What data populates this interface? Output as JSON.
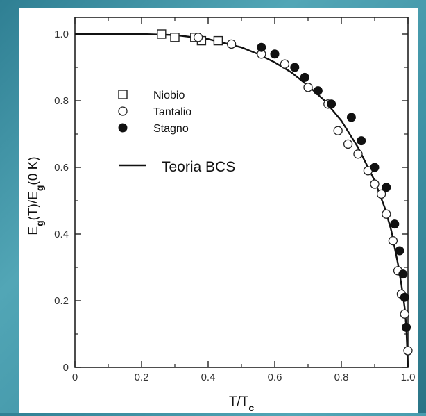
{
  "chart_data": {
    "type": "scatter",
    "xlabel": "T/T_c",
    "ylabel": "E_g(T)/E_g(0 K)",
    "xlim": [
      0,
      1.0
    ],
    "ylim": [
      0,
      1.05
    ],
    "xticks": [
      0,
      0.2,
      0.4,
      0.6,
      0.8,
      1.0
    ],
    "xtick_labels": [
      "0",
      "0.2",
      "0.4",
      "0.6",
      "0.8",
      "1.0"
    ],
    "yticks": [
      0,
      0.2,
      0.4,
      0.6,
      0.8,
      1.0
    ],
    "ytick_labels": [
      "0",
      "0.2",
      "0.4",
      "0.6",
      "0.8",
      "1.0"
    ],
    "legend_placement": "upper-left",
    "series": [
      {
        "name": "Niobio",
        "marker": "open-square",
        "points": [
          [
            0.26,
            1.0
          ],
          [
            0.3,
            0.99
          ],
          [
            0.36,
            0.99
          ],
          [
            0.38,
            0.98
          ],
          [
            0.43,
            0.98
          ]
        ]
      },
      {
        "name": "Tantalio",
        "marker": "open-circle",
        "points": [
          [
            0.37,
            0.99
          ],
          [
            0.47,
            0.97
          ],
          [
            0.56,
            0.94
          ],
          [
            0.63,
            0.91
          ],
          [
            0.7,
            0.84
          ],
          [
            0.76,
            0.79
          ],
          [
            0.79,
            0.71
          ],
          [
            0.82,
            0.67
          ],
          [
            0.85,
            0.64
          ],
          [
            0.88,
            0.59
          ],
          [
            0.9,
            0.55
          ],
          [
            0.92,
            0.52
          ],
          [
            0.935,
            0.46
          ],
          [
            0.955,
            0.38
          ],
          [
            0.97,
            0.29
          ],
          [
            0.98,
            0.22
          ],
          [
            0.99,
            0.16
          ],
          [
            1.0,
            0.05
          ]
        ]
      },
      {
        "name": "Stagno",
        "marker": "filled-circle",
        "points": [
          [
            0.56,
            0.96
          ],
          [
            0.6,
            0.94
          ],
          [
            0.66,
            0.9
          ],
          [
            0.69,
            0.87
          ],
          [
            0.73,
            0.83
          ],
          [
            0.77,
            0.79
          ],
          [
            0.83,
            0.75
          ],
          [
            0.86,
            0.68
          ],
          [
            0.9,
            0.6
          ],
          [
            0.935,
            0.54
          ],
          [
            0.96,
            0.43
          ],
          [
            0.975,
            0.35
          ],
          [
            0.985,
            0.28
          ],
          [
            0.99,
            0.21
          ],
          [
            0.995,
            0.12
          ]
        ]
      },
      {
        "name": "Teoria BCS",
        "marker": "line",
        "x": [
          0,
          0.2,
          0.3,
          0.4,
          0.5,
          0.55,
          0.6,
          0.65,
          0.7,
          0.75,
          0.8,
          0.85,
          0.9,
          0.93,
          0.95,
          0.97,
          0.98,
          0.99,
          0.995,
          1.0
        ],
        "y": [
          1.0,
          1.0,
          0.997,
          0.985,
          0.96,
          0.94,
          0.915,
          0.885,
          0.845,
          0.8,
          0.74,
          0.66,
          0.56,
          0.48,
          0.41,
          0.31,
          0.25,
          0.18,
          0.12,
          0.0
        ]
      }
    ]
  }
}
